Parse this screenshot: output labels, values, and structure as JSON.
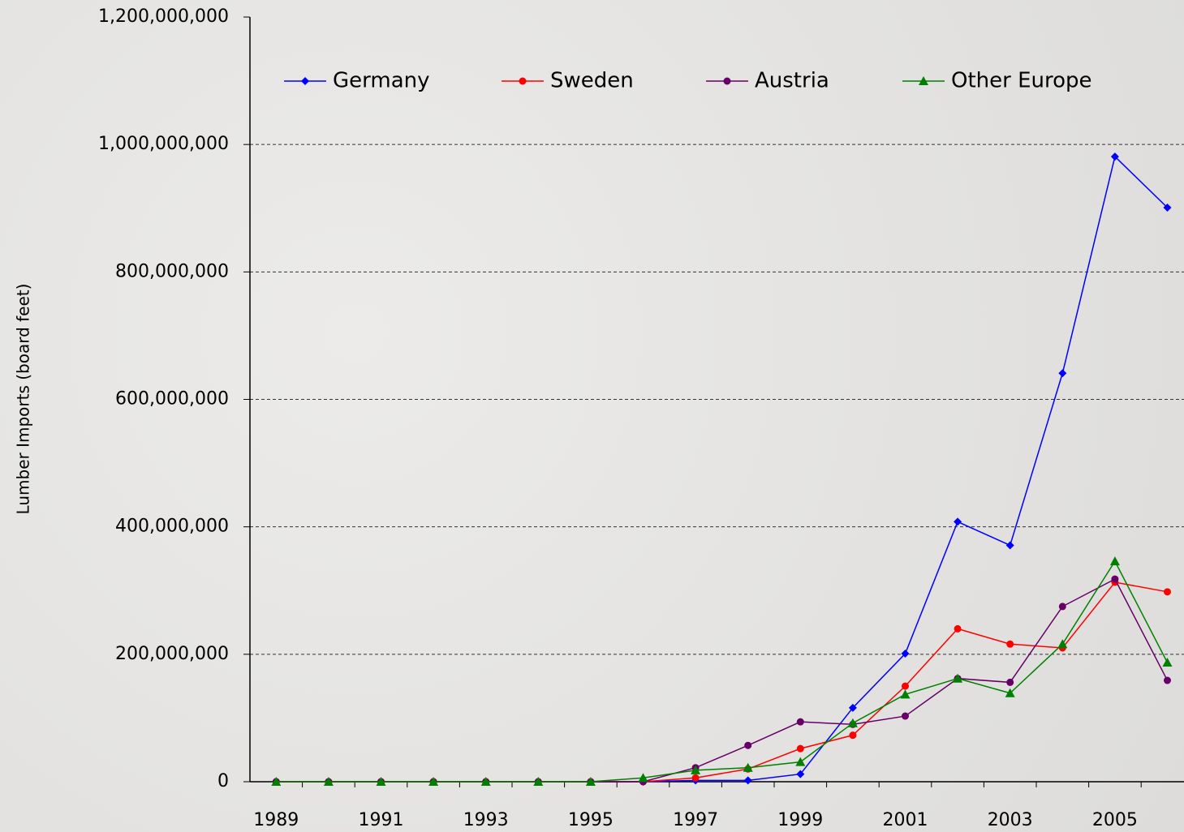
{
  "chart_data": {
    "type": "line",
    "y_label": "Lumber Imports (board feet)",
    "categories": [
      "1989",
      null,
      "1991",
      null,
      "1993",
      null,
      "1995",
      null,
      "1997",
      null,
      "1999",
      null,
      "2001",
      null,
      "2003",
      null,
      "2005",
      null
    ],
    "series": [
      {
        "name": "Germany",
        "color": "#0000ff",
        "marker": "diamond",
        "values": [
          0,
          0,
          0,
          0,
          0,
          0,
          0,
          0,
          2000000,
          2000000,
          12000000,
          116000000,
          201000000,
          408000000,
          371000000,
          641000000,
          981000000,
          901000000
        ]
      },
      {
        "name": "Sweden",
        "color": "#ff0000",
        "marker": "circle",
        "values": [
          0,
          0,
          0,
          0,
          0,
          0,
          0,
          0,
          6000000,
          20000000,
          52000000,
          73000000,
          150000000,
          240000000,
          216000000,
          210000000,
          313000000,
          298000000
        ]
      },
      {
        "name": "Austria",
        "color": "#660066",
        "marker": "circle",
        "values": [
          0,
          0,
          0,
          0,
          0,
          0,
          0,
          0,
          22000000,
          57000000,
          94000000,
          90000000,
          103000000,
          162000000,
          156000000,
          275000000,
          318000000,
          159000000
        ]
      },
      {
        "name": "Other Europe",
        "color": "#008000",
        "marker": "triangle",
        "values": [
          0,
          0,
          0,
          0,
          0,
          0,
          0,
          6000000,
          18000000,
          22000000,
          31000000,
          92000000,
          137000000,
          162000000,
          139000000,
          216000000,
          346000000,
          187000000
        ]
      }
    ],
    "ylim": [
      0,
      1200000000
    ],
    "yticks": [
      0,
      {
        "value": 200000000,
        "label": "200,000,000"
      },
      {
        "value": 400000000,
        "label": "400,000,000"
      },
      {
        "value": 600000000,
        "label": "600,000,000"
      },
      {
        "value": 800000000,
        "label": "800,000,000"
      },
      {
        "value": 1000000000,
        "label": "1,000,000,000"
      },
      {
        "value": 1200000000,
        "label": "1,200,000,000"
      }
    ],
    "grid": true,
    "legend_position": "top"
  }
}
